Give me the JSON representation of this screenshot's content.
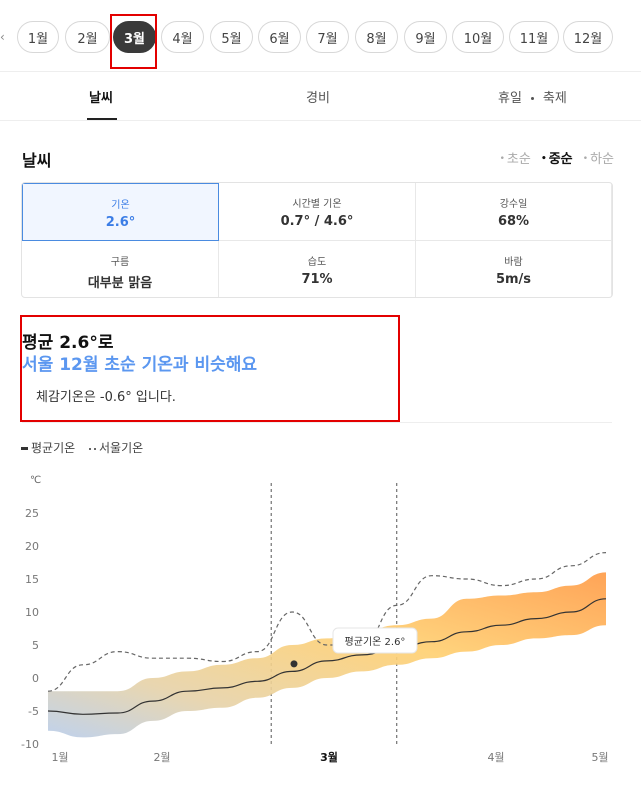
{
  "months": {
    "items": [
      "1월",
      "2월",
      "3월",
      "4월",
      "5월",
      "6월",
      "7월",
      "8월",
      "9월",
      "10월",
      "11월",
      "12월"
    ],
    "selected_index": 2,
    "prev_icon": "chevron-left-icon"
  },
  "tabs": {
    "items": [
      "날씨",
      "경비",
      "휴일",
      "축제"
    ],
    "active_index": 0
  },
  "weather": {
    "title": "날씨",
    "season_filter": {
      "items": [
        "초순",
        "중순",
        "하순"
      ],
      "selected_index": 1
    },
    "stats": [
      {
        "label": "기온",
        "value": "2.6°"
      },
      {
        "label": "시간별 기온",
        "value": "0.7° / 4.6°"
      },
      {
        "label": "강수일",
        "value": "68%"
      },
      {
        "label": "구름",
        "value": "대부분 맑음"
      },
      {
        "label": "습도",
        "value": "71%"
      },
      {
        "label": "바람",
        "value": "5m/s"
      }
    ],
    "summary": {
      "title": "평균 2.6°로",
      "subtitle": "서울 12월 초순 기온과 비슷해요",
      "note": "체감기온은 -0.6° 입니다."
    }
  },
  "legend": {
    "avg": "평균기온",
    "seoul": "서울기온"
  },
  "chart_data": {
    "type": "line",
    "y_unit": "℃",
    "ylim": [
      -10,
      25
    ],
    "y_ticks": [
      25,
      20,
      15,
      10,
      5,
      0,
      -5,
      -10
    ],
    "x_ticks": [
      "1월",
      "2월",
      "3월",
      "4월",
      "5월"
    ],
    "x_tick_active": "3월",
    "tooltip": "평균기온 2.6°",
    "tooltip_point": {
      "x": 2.0,
      "y": 2.6
    },
    "series": [
      {
        "name": "평균기온",
        "x": [
          0,
          0.25,
          0.5,
          0.75,
          1,
          1.25,
          1.5,
          1.75,
          2,
          2.25,
          2.5,
          2.75,
          3,
          3.25,
          3.5,
          3.75,
          4
        ],
        "y": [
          -5,
          -5.5,
          -5.3,
          -3.5,
          -2,
          -1.5,
          -0.5,
          1,
          2.6,
          3.5,
          4.5,
          5.5,
          7,
          8,
          9,
          10,
          12
        ]
      },
      {
        "name": "평균기온 범위",
        "type": "area",
        "x": [
          0,
          0.25,
          0.5,
          0.75,
          1,
          1.25,
          1.5,
          1.75,
          2,
          2.25,
          2.5,
          2.75,
          3,
          3.25,
          3.5,
          3.75,
          4
        ],
        "low": [
          -8,
          -9,
          -8.5,
          -6.5,
          -5,
          -4.5,
          -3,
          -1.5,
          0,
          1,
          2,
          3,
          4,
          5,
          6,
          6.5,
          8
        ],
        "high": [
          -2,
          -2,
          -2,
          0,
          1,
          2,
          3,
          5,
          6,
          7,
          8,
          9,
          12,
          12.5,
          13,
          14,
          16
        ]
      },
      {
        "name": "서울기온",
        "x": [
          0,
          0.25,
          0.5,
          0.75,
          1,
          1.25,
          1.5,
          1.75,
          2,
          2.25,
          2.5,
          2.75,
          3,
          3.25,
          3.5,
          3.75,
          4
        ],
        "y": [
          -2,
          2,
          4,
          3,
          3,
          2.5,
          4,
          10,
          5,
          5,
          11,
          15.5,
          15,
          14,
          15,
          17,
          19
        ]
      }
    ],
    "dividers_at": [
      1.6,
      2.5
    ]
  }
}
